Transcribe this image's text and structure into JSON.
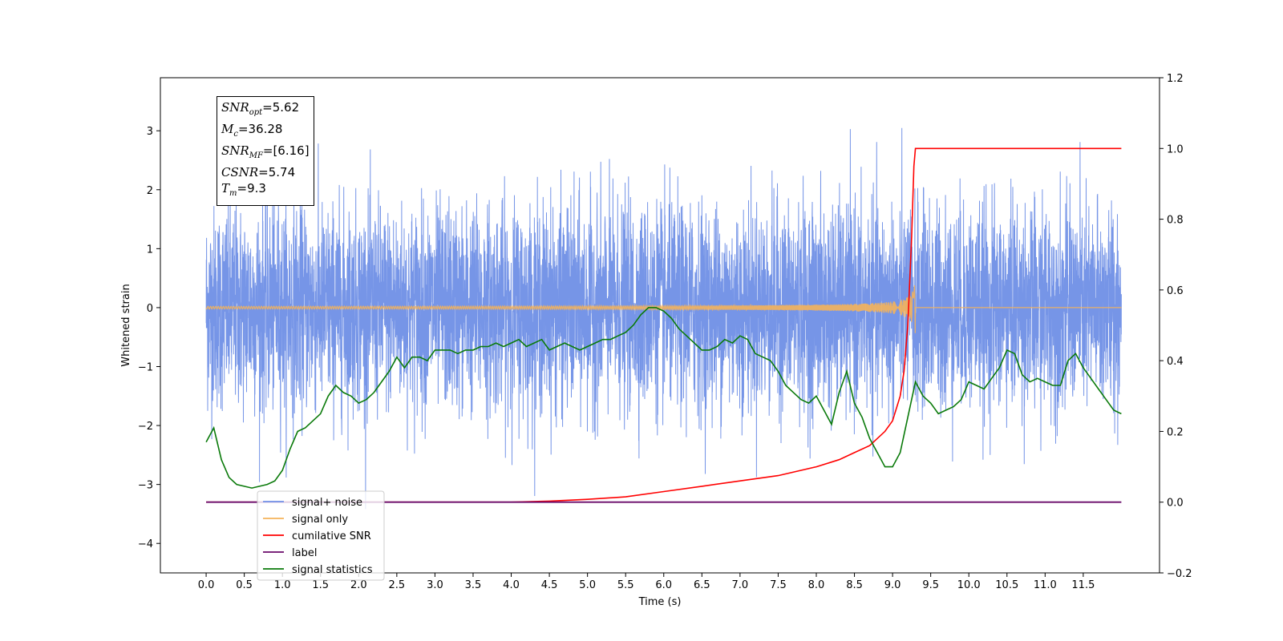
{
  "chart_data": {
    "type": "line",
    "xlabel": "Time (s)",
    "ylabel": "Whitened strain",
    "xlim": [
      -0.6,
      12.5
    ],
    "ylim": [
      -4.5,
      3.9
    ],
    "y2lim": [
      -0.2,
      1.2
    ],
    "x_ticks": [
      "0.0",
      "0.5",
      "1.0",
      "1.5",
      "2.0",
      "2.5",
      "3.0",
      "3.5",
      "4.0",
      "4.5",
      "5.0",
      "5.5",
      "6.0",
      "6.5",
      "7.0",
      "7.5",
      "8.0",
      "8.5",
      "9.0",
      "9.5",
      "10.0",
      "10.5",
      "11.0",
      "11.5"
    ],
    "y_ticks": [
      "3",
      "2",
      "1",
      "0",
      "−1",
      "−2",
      "−3",
      "−4"
    ],
    "y2_ticks": [
      "1.2",
      "1.0",
      "0.8",
      "0.6",
      "0.4",
      "0.2",
      "0.0",
      "−0.2"
    ],
    "annotation": {
      "snr_opt": "SNR",
      "snr_opt_sub": "opt",
      "snr_opt_val": "=5.62",
      "mc": "M",
      "mc_sub": "c",
      "mc_val": "=36.28",
      "snr_mf": "SNR",
      "snr_mf_sub": "MF",
      "snr_mf_val": "=[6.16]",
      "csnr": "CSNR",
      "csnr_val": "=5.74",
      "tm": "T",
      "tm_sub": "m",
      "tm_val": "=9.3"
    },
    "legend": {
      "placement": "lower-left",
      "entries": [
        "signal+ noise",
        "signal only",
        "cumilative SNR",
        "label",
        "signal statistics"
      ]
    },
    "colors": {
      "signal_noise": "#6f8fe6",
      "signal_only": "#f5b25a",
      "cumulative_snr": "#ff0000",
      "label": "#6a0a6a",
      "signal_statistics": "#0a7a0a"
    },
    "series": [
      {
        "name": "signal+ noise",
        "axis": "left",
        "description_range": [
          0.0,
          12.0
        ],
        "noise_envelope": [
          -2.3,
          2.3
        ]
      },
      {
        "name": "signal only",
        "axis": "left",
        "peak_time": 9.3,
        "peak_amplitude": 0.5
      },
      {
        "name": "cumilative SNR",
        "axis": "right",
        "x": [
          0.0,
          4.0,
          4.5,
          5.0,
          5.5,
          6.0,
          6.5,
          7.0,
          7.5,
          8.0,
          8.3,
          8.5,
          8.7,
          8.9,
          9.0,
          9.1,
          9.15,
          9.2,
          9.25,
          9.28,
          9.3,
          12.0
        ],
        "y": [
          0.0,
          0.0,
          0.003,
          0.008,
          0.015,
          0.03,
          0.045,
          0.06,
          0.075,
          0.1,
          0.12,
          0.14,
          0.16,
          0.2,
          0.23,
          0.3,
          0.37,
          0.5,
          0.75,
          0.95,
          1.0,
          1.0
        ]
      },
      {
        "name": "label",
        "axis": "right",
        "x": [
          0.0,
          12.0
        ],
        "y": [
          0.0,
          0.0
        ]
      },
      {
        "name": "signal statistics",
        "axis": "right",
        "x": [
          0.0,
          0.1,
          0.2,
          0.3,
          0.4,
          0.5,
          0.6,
          0.7,
          0.8,
          0.9,
          1.0,
          1.1,
          1.2,
          1.3,
          1.4,
          1.5,
          1.6,
          1.7,
          1.8,
          1.9,
          2.0,
          2.1,
          2.2,
          2.3,
          2.4,
          2.5,
          2.6,
          2.7,
          2.8,
          2.9,
          3.0,
          3.1,
          3.2,
          3.3,
          3.4,
          3.5,
          3.6,
          3.7,
          3.8,
          3.9,
          4.0,
          4.1,
          4.2,
          4.3,
          4.4,
          4.5,
          4.6,
          4.7,
          4.8,
          4.9,
          5.0,
          5.1,
          5.2,
          5.3,
          5.4,
          5.5,
          5.6,
          5.7,
          5.8,
          5.9,
          6.0,
          6.1,
          6.2,
          6.3,
          6.4,
          6.5,
          6.6,
          6.7,
          6.8,
          6.9,
          7.0,
          7.1,
          7.2,
          7.3,
          7.4,
          7.5,
          7.6,
          7.7,
          7.8,
          7.9,
          8.0,
          8.1,
          8.2,
          8.3,
          8.4,
          8.5,
          8.6,
          8.7,
          8.8,
          8.9,
          9.0,
          9.1,
          9.2,
          9.3,
          9.4,
          9.5,
          9.6,
          9.7,
          9.8,
          9.9,
          10.0,
          10.1,
          10.2,
          10.3,
          10.4,
          10.5,
          10.6,
          10.7,
          10.8,
          10.9,
          11.0,
          11.1,
          11.2,
          11.3,
          11.4,
          11.5,
          11.6,
          11.7,
          11.8,
          11.9,
          12.0
        ],
        "y": [
          0.17,
          0.21,
          0.12,
          0.07,
          0.05,
          0.045,
          0.04,
          0.045,
          0.05,
          0.06,
          0.09,
          0.15,
          0.2,
          0.21,
          0.23,
          0.25,
          0.3,
          0.33,
          0.31,
          0.3,
          0.28,
          0.29,
          0.31,
          0.34,
          0.37,
          0.41,
          0.38,
          0.41,
          0.41,
          0.4,
          0.43,
          0.43,
          0.43,
          0.42,
          0.43,
          0.43,
          0.44,
          0.44,
          0.45,
          0.44,
          0.45,
          0.46,
          0.44,
          0.45,
          0.46,
          0.43,
          0.44,
          0.45,
          0.44,
          0.43,
          0.44,
          0.45,
          0.46,
          0.46,
          0.47,
          0.48,
          0.5,
          0.53,
          0.55,
          0.55,
          0.54,
          0.52,
          0.49,
          0.47,
          0.45,
          0.43,
          0.43,
          0.44,
          0.46,
          0.45,
          0.47,
          0.46,
          0.42,
          0.41,
          0.4,
          0.37,
          0.33,
          0.31,
          0.29,
          0.28,
          0.3,
          0.26,
          0.22,
          0.31,
          0.37,
          0.28,
          0.24,
          0.18,
          0.14,
          0.1,
          0.1,
          0.14,
          0.24,
          0.34,
          0.3,
          0.28,
          0.25,
          0.26,
          0.27,
          0.29,
          0.34,
          0.33,
          0.32,
          0.35,
          0.38,
          0.43,
          0.42,
          0.36,
          0.34,
          0.35,
          0.34,
          0.33,
          0.33,
          0.4,
          0.42,
          0.38,
          0.35,
          0.32,
          0.29,
          0.26,
          0.25
        ]
      }
    ]
  }
}
